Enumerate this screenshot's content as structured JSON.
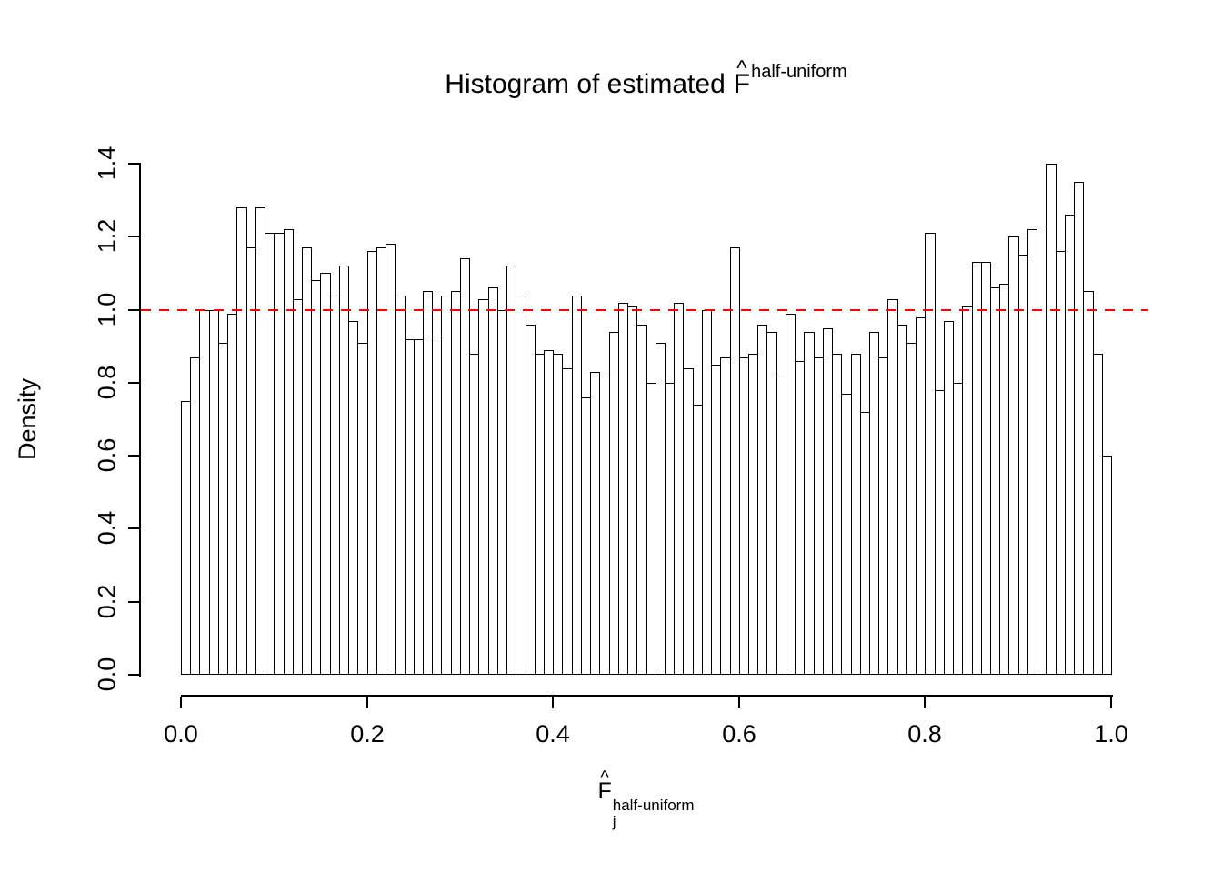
{
  "chart_data": {
    "type": "bar",
    "chart_kind": "histogram",
    "title": {
      "prefix": "Histogram of estimated",
      "symbol": "F",
      "hat": "^",
      "superscript": "half-uniform"
    },
    "xlabel": {
      "symbol": "F",
      "hat": "^",
      "subscript": "j",
      "superscript": "half-uniform"
    },
    "ylabel": "Density",
    "x_ticks": [
      "0.0",
      "0.2",
      "0.4",
      "0.6",
      "0.8",
      "1.0"
    ],
    "y_ticks": [
      "0.0",
      "0.2",
      "0.4",
      "0.6",
      "0.8",
      "1.0",
      "1.2",
      "1.4"
    ],
    "xlim": [
      0,
      1
    ],
    "ylim": [
      0,
      1.4
    ],
    "bin_width": 0.01,
    "bin_start": 0,
    "grid": false,
    "legend": "none",
    "bar_fill": "#ffffff",
    "bar_stroke": "#000000",
    "reference_line": {
      "y": 1.0,
      "color": "#ff0000",
      "style": "dashed"
    },
    "values": [
      0.75,
      0.87,
      1.0,
      1.0,
      0.91,
      0.99,
      1.28,
      1.17,
      1.28,
      1.21,
      1.21,
      1.22,
      1.03,
      1.17,
      1.08,
      1.1,
      1.04,
      1.12,
      0.97,
      0.91,
      1.16,
      1.17,
      1.18,
      1.04,
      0.92,
      0.92,
      1.05,
      0.93,
      1.04,
      1.05,
      1.14,
      0.88,
      1.03,
      1.06,
      1.0,
      1.12,
      1.04,
      0.96,
      0.88,
      0.89,
      0.88,
      0.84,
      1.04,
      0.76,
      0.83,
      0.82,
      0.94,
      1.02,
      1.01,
      0.96,
      0.8,
      0.91,
      0.8,
      1.02,
      0.84,
      0.74,
      1.0,
      0.85,
      0.87,
      1.17,
      0.87,
      0.88,
      0.96,
      0.94,
      0.82,
      0.99,
      0.86,
      0.94,
      0.87,
      0.95,
      0.88,
      0.77,
      0.88,
      0.72,
      0.94,
      0.87,
      1.03,
      0.96,
      0.91,
      0.98,
      1.21,
      0.78,
      0.97,
      0.8,
      1.01,
      1.13,
      1.13,
      1.06,
      1.07,
      1.2,
      1.15,
      1.22,
      1.23,
      1.4,
      1.16,
      1.26,
      1.35,
      1.05,
      0.88,
      0.6
    ]
  }
}
